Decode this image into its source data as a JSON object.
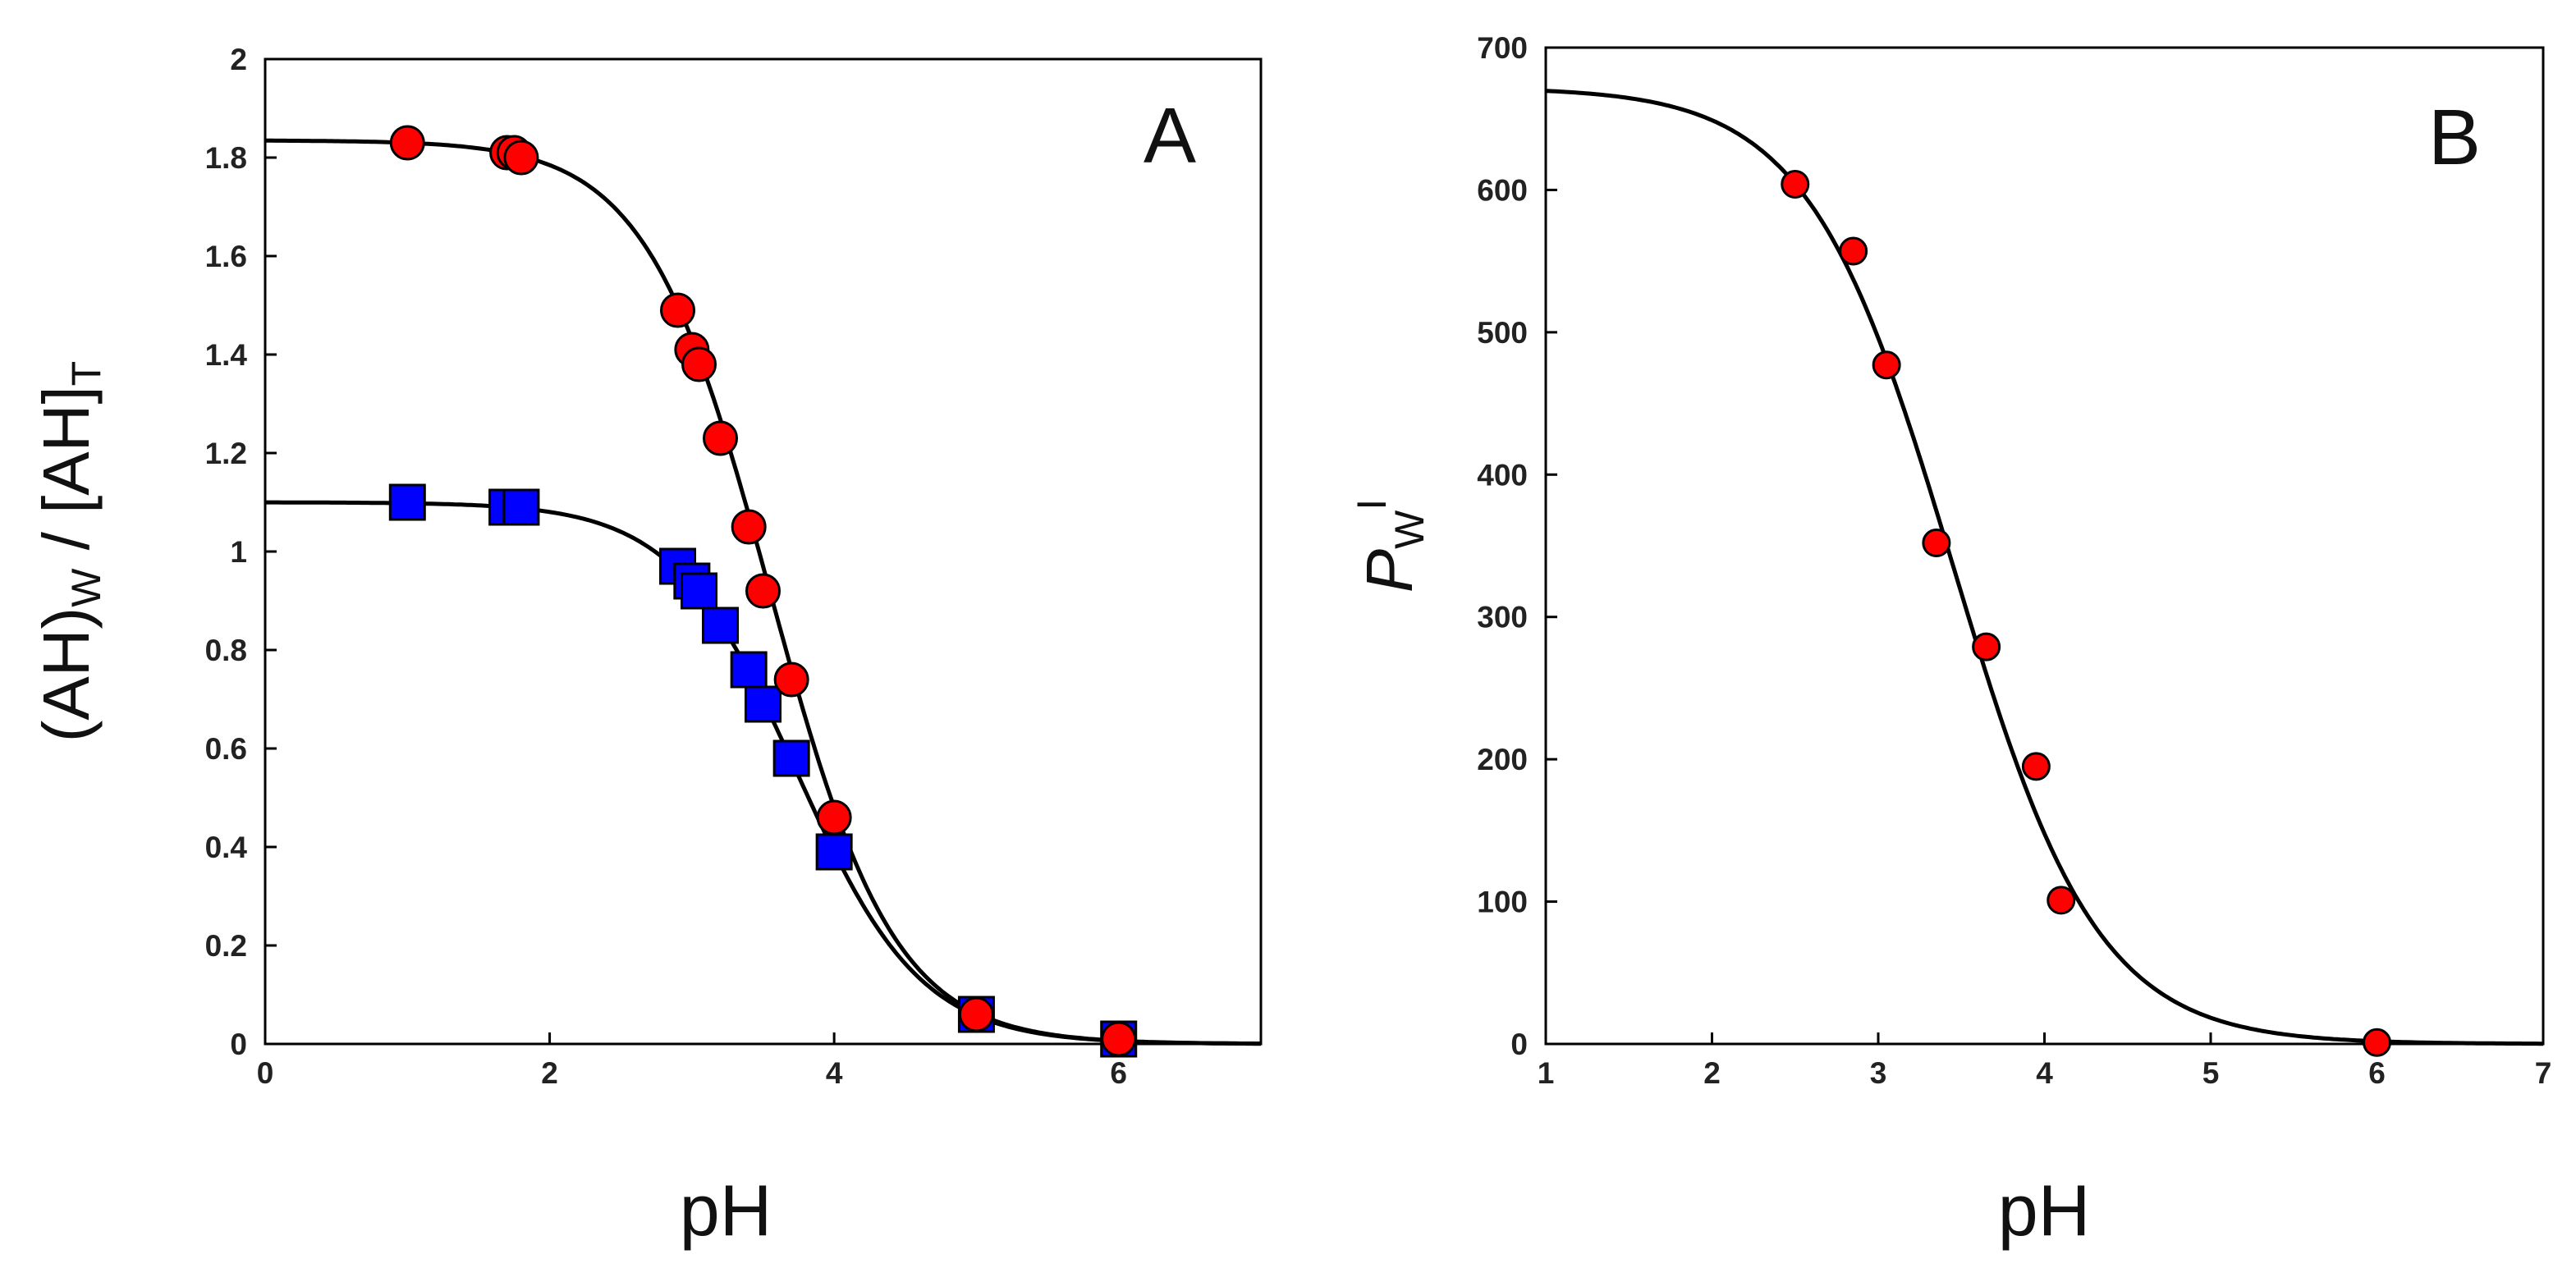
{
  "chart_data": [
    {
      "type": "scatter",
      "panel_letter": "A",
      "xlabel": "pH",
      "ylabel": {
        "p1": "(AH)",
        "sub1": "W",
        "p2": " / [AH]",
        "sub2": "T"
      },
      "xlim": [
        0,
        7
      ],
      "ylim": [
        0,
        2
      ],
      "xticks": [
        0,
        2,
        4,
        6
      ],
      "xtick_labels": [
        "0",
        "2",
        "4",
        "6"
      ],
      "yticks": [
        0,
        0.2,
        0.4,
        0.6,
        0.8,
        1,
        1.2,
        1.4,
        1.6,
        1.8,
        2
      ],
      "ytick_labels": [
        "0",
        "0.2",
        "0.4",
        "0.6",
        "0.8",
        "1",
        "1.2",
        "1.4",
        "1.6",
        "1.8",
        "2"
      ],
      "series": [
        {
          "name": "red-circles",
          "marker": "circle",
          "color": "#ff0000",
          "x": [
            1.0,
            1.7,
            1.75,
            1.8,
            2.9,
            3.0,
            3.05,
            3.2,
            3.4,
            3.5,
            3.7,
            4.0,
            5.0,
            6.0
          ],
          "y": [
            1.83,
            1.81,
            1.81,
            1.8,
            1.49,
            1.41,
            1.38,
            1.23,
            1.05,
            0.92,
            0.74,
            0.46,
            0.06,
            0.01
          ],
          "fit": {
            "amplitude": 1.835,
            "pKa": 3.55
          }
        },
        {
          "name": "blue-squares",
          "marker": "square",
          "color": "#0000ff",
          "x": [
            1.0,
            1.7,
            1.8,
            2.9,
            3.0,
            3.05,
            3.2,
            3.4,
            3.5,
            3.7,
            4.0,
            5.0,
            6.0
          ],
          "y": [
            1.1,
            1.09,
            1.09,
            0.97,
            0.94,
            0.92,
            0.85,
            0.76,
            0.69,
            0.58,
            0.39,
            0.06,
            0.01
          ],
          "fit": {
            "amplitude": 1.1,
            "pKa": 3.74
          }
        }
      ]
    },
    {
      "type": "scatter",
      "panel_letter": "B",
      "xlabel": "pH",
      "ylabel": {
        "p": "P",
        "sub": "W",
        "sup": "I"
      },
      "xlim": [
        1,
        7
      ],
      "ylim": [
        0,
        700
      ],
      "xticks": [
        1,
        2,
        3,
        4,
        5,
        6,
        7
      ],
      "xtick_labels": [
        "1",
        "2",
        "3",
        "4",
        "5",
        "6",
        "7"
      ],
      "yticks": [
        0,
        100,
        200,
        300,
        400,
        500,
        600,
        700
      ],
      "ytick_labels": [
        "0",
        "100",
        "200",
        "300",
        "400",
        "500",
        "600",
        "700"
      ],
      "series": [
        {
          "name": "red-circles",
          "marker": "circle",
          "color": "#ff0000",
          "x": [
            2.5,
            2.85,
            3.05,
            3.35,
            3.65,
            3.95,
            4.1,
            6.0
          ],
          "y": [
            604,
            557,
            477,
            352,
            279,
            195,
            101,
            1
          ],
          "fit": {
            "amplitude": 672,
            "pKa": 3.45
          }
        }
      ]
    }
  ]
}
